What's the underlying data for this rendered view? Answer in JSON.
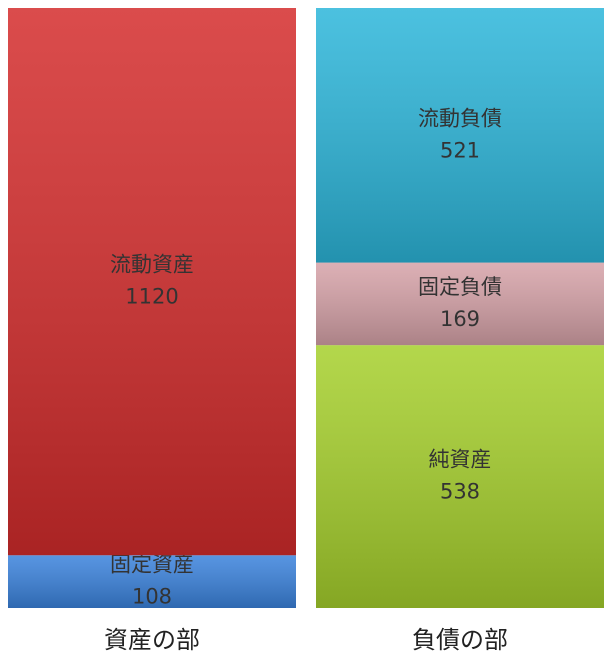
{
  "chart_data": {
    "type": "stacked_bar",
    "categories": [
      "資産の部",
      "負債の部"
    ],
    "series": [
      {
        "name": "固定資産",
        "color": "#3a82dc",
        "values": [
          108,
          null
        ]
      },
      {
        "name": "流動資産",
        "color": "#d42c2c",
        "values": [
          1120,
          null
        ]
      },
      {
        "name": "純資産",
        "color": "#a6d02c",
        "values": [
          null,
          538
        ]
      },
      {
        "name": "固定負債",
        "color": "#d6a2a8",
        "values": [
          null,
          169
        ]
      },
      {
        "name": "流動負債",
        "color": "#2cb6da",
        "values": [
          null,
          521
        ]
      }
    ]
  }
}
